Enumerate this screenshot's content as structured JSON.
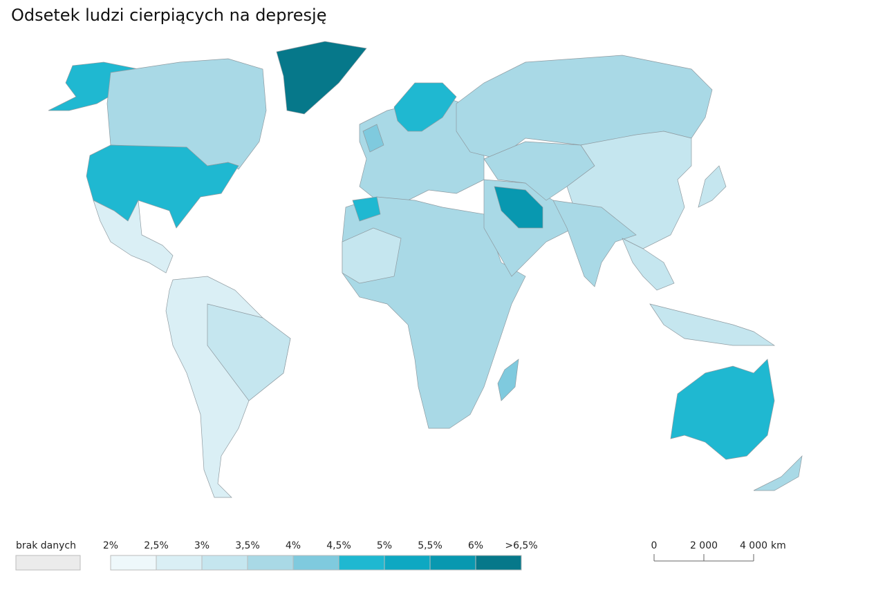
{
  "title": "Odsetek ludzi cierpiących na depresję",
  "legend": {
    "no_data_label": "brak danych",
    "no_data_color": "#ebebeb",
    "labels": [
      "2%",
      "2,5%",
      "3%",
      "3,5%",
      "4%",
      "4,5%",
      "5%",
      "5,5%",
      "6%",
      ">6,5%"
    ],
    "colors": [
      "#eef8fb",
      "#daeff5",
      "#c5e6ef",
      "#a9d9e6",
      "#7fcade",
      "#1fb8d1",
      "#0ea8c2",
      "#0898b0",
      "#06788a"
    ]
  },
  "scale_bar": {
    "labels": [
      "0",
      "2 000",
      "4 000"
    ],
    "unit": "km"
  }
}
